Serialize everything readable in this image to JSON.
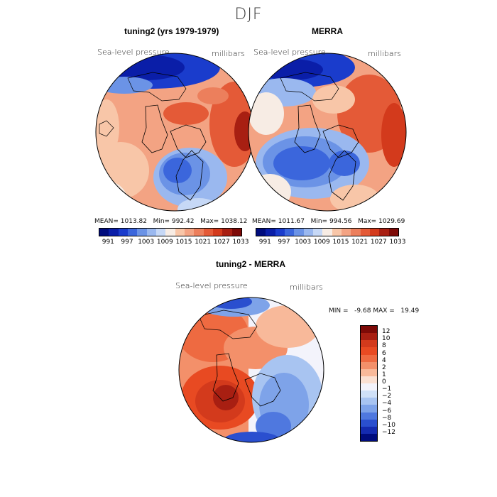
{
  "figure": {
    "season": "DJF",
    "panels": [
      {
        "title": "tuning2 (yrs 1979-1979)",
        "variable": "Sea-level pressure",
        "units": "millibars",
        "mean_label": "MEAN=",
        "mean": "1013.82",
        "min_label": "Min=",
        "min": "992.42",
        "max_label": "Max=",
        "max": "1038.12"
      },
      {
        "title": "MERRA",
        "variable": "Sea-level pressure",
        "units": "millibars",
        "mean_label": "MEAN=",
        "mean": "1011.67",
        "min_label": "Min=",
        "min": "994.56",
        "max_label": "Max=",
        "max": "1029.69"
      },
      {
        "title": "tuning2 - MERRA",
        "variable": "Sea-level pressure",
        "units": "millibars",
        "min_label": "MIN =",
        "min": "-9.68",
        "max_label": "MAX =",
        "max": "19.49"
      }
    ],
    "abs_colorbar": {
      "labels": [
        "991",
        "997",
        "1003",
        "1009",
        "1015",
        "1021",
        "1027",
        "1033"
      ],
      "colors": [
        "#000c7d",
        "#0a1ea8",
        "#1a3ccc",
        "#3b66dc",
        "#6b93e6",
        "#9ab8ef",
        "#c6d8f6",
        "#f7ece4",
        "#f8c6a8",
        "#f3a383",
        "#ec7f5c",
        "#e45a37",
        "#d33a1c",
        "#a81f12",
        "#7d0a07"
      ]
    },
    "diff_colorbar": {
      "labels": [
        "12",
        "10",
        "8",
        "6",
        "4",
        "2",
        "1",
        "0",
        "−1",
        "−2",
        "−4",
        "−6",
        "−8",
        "−10",
        "−12"
      ],
      "colors": [
        "#7d0a07",
        "#a81f12",
        "#d33a1c",
        "#e84a22",
        "#ee6a41",
        "#f3906a",
        "#f8b99a",
        "#fae0d2",
        "#f3f3fb",
        "#cfe0f7",
        "#a8c4f1",
        "#7ea3e9",
        "#4f78df",
        "#2a4fcf",
        "#142bb0",
        "#000c7d"
      ]
    }
  }
}
